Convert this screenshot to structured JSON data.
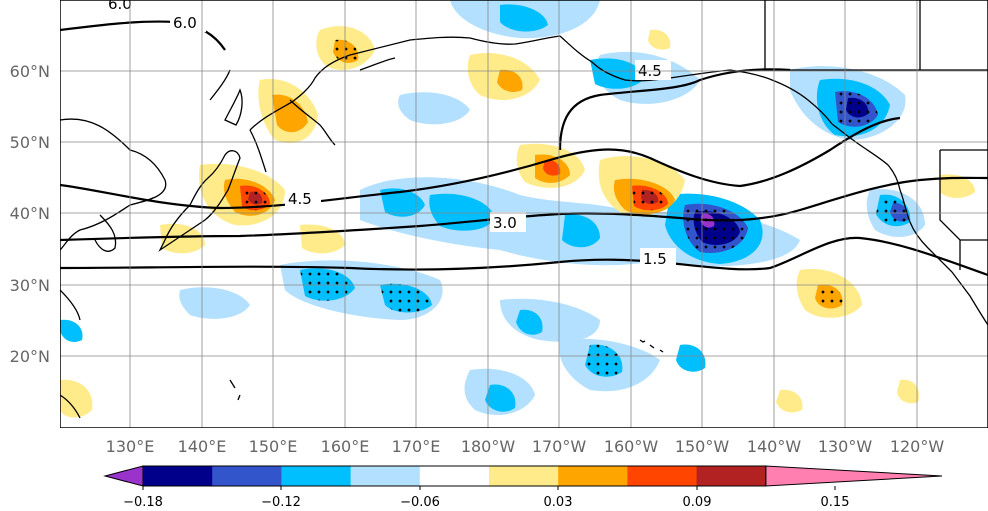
{
  "map": {
    "lat_labels": [
      "60°N",
      "50°N",
      "40°N",
      "30°N",
      "20°N"
    ],
    "lon_labels": [
      "130°E",
      "140°E",
      "150°E",
      "160°E",
      "170°E",
      "180°W",
      "170°W",
      "160°W",
      "150°W",
      "140°W",
      "130°W",
      "120°W"
    ],
    "contour_labels": [
      "6.0",
      "6.0",
      "4.5",
      "4.5",
      "3.0",
      "1.5"
    ],
    "colors": {
      "levels": [
        "#9933cc",
        "#00008b",
        "#3355cc",
        "#00bfff",
        "#b3e0ff",
        "#ffffff",
        "#ffeb8a",
        "#ffa500",
        "#ff4500",
        "#b22222",
        "#ff80b0"
      ],
      "coast": "#000000",
      "grid": "#888888"
    }
  },
  "colorbar": {
    "tick_labels": [
      "−0.18",
      "−0.12",
      "−0.06",
      "0.03",
      "0.09",
      "0.15"
    ]
  }
}
